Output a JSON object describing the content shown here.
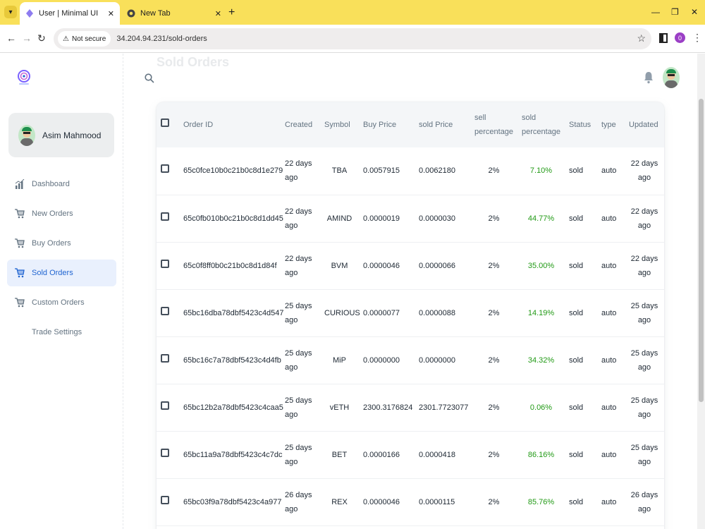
{
  "browser": {
    "tabs": [
      {
        "title": "User | Minimal UI",
        "active": true
      },
      {
        "title": "New Tab",
        "active": false
      }
    ],
    "security_label": "Not secure",
    "url": "34.204.94.231/sold-orders",
    "profile_initial": "0"
  },
  "app": {
    "page_title": "Sold Orders",
    "user": {
      "name": "Asim Mahmood"
    },
    "nav": [
      {
        "label": "Dashboard",
        "icon": "chart-icon",
        "active": false
      },
      {
        "label": "New Orders",
        "icon": "cart-icon",
        "active": false
      },
      {
        "label": "Buy Orders",
        "icon": "cart-icon",
        "active": false
      },
      {
        "label": "Sold Orders",
        "icon": "cart-icon",
        "active": true
      },
      {
        "label": "Custom Orders",
        "icon": "cart-icon",
        "active": false
      },
      {
        "label": "Trade Settings",
        "icon": "",
        "active": false
      }
    ],
    "accent_color": "#2065d1",
    "positive_color": "#229a16"
  },
  "table": {
    "headers": [
      "Order ID",
      "Created",
      "Symbol",
      "Buy Price",
      "sold Price",
      "sell percentage",
      "sold percentage",
      "Status",
      "type",
      "Updated"
    ],
    "rows": [
      {
        "id": "65c0fce10b0c21b0c8d1e279",
        "created": "22 days ago",
        "symbol": "TBA",
        "buy": "0.0057915",
        "sold": "0.0062180",
        "sell_pct": "2%",
        "sold_pct": "7.10%",
        "status": "sold",
        "type": "auto",
        "updated": "22 days ago"
      },
      {
        "id": "65c0fb010b0c21b0c8d1dd45",
        "created": "22 days ago",
        "symbol": "AMIND",
        "buy": "0.0000019",
        "sold": "0.0000030",
        "sell_pct": "2%",
        "sold_pct": "44.77%",
        "status": "sold",
        "type": "auto",
        "updated": "22 days ago"
      },
      {
        "id": "65c0f8ff0b0c21b0c8d1d84f",
        "created": "22 days ago",
        "symbol": "BVM",
        "buy": "0.0000046",
        "sold": "0.0000066",
        "sell_pct": "2%",
        "sold_pct": "35.00%",
        "status": "sold",
        "type": "auto",
        "updated": "22 days ago"
      },
      {
        "id": "65bc16dba78dbf5423c4d547",
        "created": "25 days ago",
        "symbol": "CURIOUS",
        "buy": "0.0000077",
        "sold": "0.0000088",
        "sell_pct": "2%",
        "sold_pct": "14.19%",
        "status": "sold",
        "type": "auto",
        "updated": "25 days ago"
      },
      {
        "id": "65bc16c7a78dbf5423c4d4fb",
        "created": "25 days ago",
        "symbol": "MiP",
        "buy": "0.0000000",
        "sold": "0.0000000",
        "sell_pct": "2%",
        "sold_pct": "34.32%",
        "status": "sold",
        "type": "auto",
        "updated": "25 days ago"
      },
      {
        "id": "65bc12b2a78dbf5423c4caa5",
        "created": "25 days ago",
        "symbol": "vETH",
        "buy": "2300.3176824",
        "sold": "2301.7723077",
        "sell_pct": "2%",
        "sold_pct": "0.06%",
        "status": "sold",
        "type": "auto",
        "updated": "25 days ago"
      },
      {
        "id": "65bc11a9a78dbf5423c4c7dc",
        "created": "25 days ago",
        "symbol": "BET",
        "buy": "0.0000166",
        "sold": "0.0000418",
        "sell_pct": "2%",
        "sold_pct": "86.16%",
        "status": "sold",
        "type": "auto",
        "updated": "25 days ago"
      },
      {
        "id": "65bc03f9a78dbf5423c4a977",
        "created": "26 days ago",
        "symbol": "REX",
        "buy": "0.0000046",
        "sold": "0.0000115",
        "sell_pct": "2%",
        "sold_pct": "85.76%",
        "status": "sold",
        "type": "auto",
        "updated": "26 days ago"
      }
    ]
  }
}
